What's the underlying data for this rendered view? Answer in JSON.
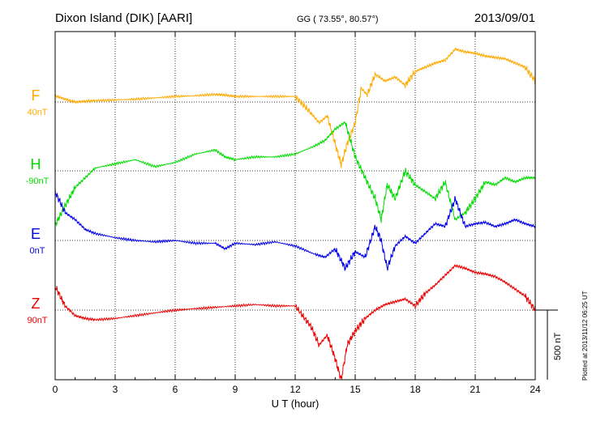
{
  "header": {
    "station": "Dixon Island (DIK)  [AARI]",
    "coords": "GG ( 73.55°,  80.57°)",
    "date": "2013/09/01"
  },
  "footer": {
    "plotted": "Plotted at 2013/11/12 06:25 UT",
    "scale_bar": "500 nT"
  },
  "chart_data": {
    "type": "line",
    "xlabel": "U T (hour)",
    "xlim": [
      0,
      24
    ],
    "x_ticks": [
      "0",
      "3",
      "6",
      "9",
      "12",
      "15",
      "18",
      "21",
      "24"
    ],
    "y_units": "nT",
    "scale_bar_nT": 500,
    "grid": true,
    "series": [
      {
        "name": "F",
        "baseline_label": "40nT",
        "baseline_nT": 40,
        "color": "#ffaa00",
        "x": [
          0,
          0.5,
          1,
          1.5,
          2,
          3,
          4,
          5,
          6,
          7,
          8,
          8.5,
          9,
          10,
          11,
          12,
          12.8,
          13.2,
          13.6,
          14,
          14.3,
          14.6,
          15,
          15.3,
          15.6,
          16,
          16.5,
          17,
          17.5,
          18,
          18.5,
          19,
          19.5,
          20,
          20.5,
          21,
          21.5,
          22,
          22.5,
          23,
          23.5,
          24
        ],
        "y": [
          45,
          20,
          0,
          5,
          10,
          15,
          20,
          30,
          40,
          45,
          55,
          50,
          40,
          40,
          40,
          40,
          -80,
          -150,
          -100,
          -300,
          -450,
          -300,
          -150,
          100,
          50,
          200,
          150,
          180,
          120,
          220,
          250,
          280,
          300,
          380,
          360,
          350,
          330,
          320,
          310,
          280,
          250,
          150
        ]
      },
      {
        "name": "H",
        "baseline_label": "-90nT",
        "baseline_nT": -90,
        "color": "#00dd00",
        "x": [
          0,
          0.5,
          1,
          1.5,
          2,
          3,
          4,
          5,
          6,
          7,
          8,
          8.5,
          9,
          10,
          11,
          12,
          13,
          13.5,
          14,
          14.5,
          15,
          15.5,
          16,
          16.3,
          16.6,
          17,
          17.5,
          18,
          18.5,
          19,
          19.5,
          20,
          20.5,
          21,
          21.5,
          22,
          22.5,
          23,
          23.5,
          24
        ],
        "y": [
          -390,
          -250,
          -120,
          -50,
          20,
          50,
          80,
          30,
          60,
          120,
          150,
          100,
          80,
          100,
          100,
          120,
          180,
          220,
          300,
          350,
          100,
          -50,
          -200,
          -350,
          -100,
          -200,
          0,
          -100,
          -150,
          -200,
          -80,
          -350,
          -300,
          -200,
          -80,
          -100,
          -50,
          -80,
          -50,
          -50
        ]
      },
      {
        "name": "E",
        "baseline_label": "0nT",
        "baseline_nT": 0,
        "color": "#0000ee",
        "x": [
          0,
          0.5,
          1,
          1.5,
          2,
          3,
          4,
          5,
          6,
          7,
          8,
          8.5,
          9,
          10,
          11,
          12,
          13,
          13.5,
          14,
          14.5,
          15,
          15.5,
          16,
          16.3,
          16.6,
          17,
          17.5,
          18,
          18.5,
          19,
          19.5,
          20,
          20.5,
          21,
          21.5,
          22,
          22.5,
          23,
          23.5,
          24
        ],
        "y": [
          350,
          200,
          150,
          80,
          50,
          20,
          0,
          -10,
          0,
          -20,
          -20,
          -60,
          -20,
          -30,
          -10,
          -40,
          -100,
          -120,
          -60,
          -200,
          -80,
          -120,
          100,
          0,
          -200,
          -40,
          30,
          -20,
          50,
          120,
          100,
          300,
          100,
          120,
          130,
          100,
          120,
          150,
          120,
          100
        ]
      },
      {
        "name": "Z",
        "baseline_label": "90nT",
        "baseline_nT": 90,
        "color": "#ee0000",
        "x": [
          0,
          0.5,
          1,
          1.5,
          2,
          3,
          4,
          5,
          6,
          7,
          8,
          9,
          10,
          11,
          12,
          12.8,
          13.2,
          13.6,
          14,
          14.3,
          14.6,
          15,
          15.5,
          16,
          16.5,
          17,
          17.5,
          18,
          18.5,
          19,
          19.5,
          20,
          20.5,
          21,
          21.5,
          22,
          22.5,
          23,
          23.5,
          24
        ],
        "y": [
          170,
          30,
          -40,
          -60,
          -70,
          -60,
          -40,
          -20,
          0,
          10,
          20,
          30,
          40,
          30,
          30,
          -120,
          -250,
          -180,
          -350,
          -500,
          -250,
          -150,
          -60,
          0,
          40,
          60,
          80,
          30,
          120,
          180,
          250,
          320,
          300,
          270,
          260,
          240,
          200,
          150,
          100,
          0
        ]
      }
    ]
  }
}
